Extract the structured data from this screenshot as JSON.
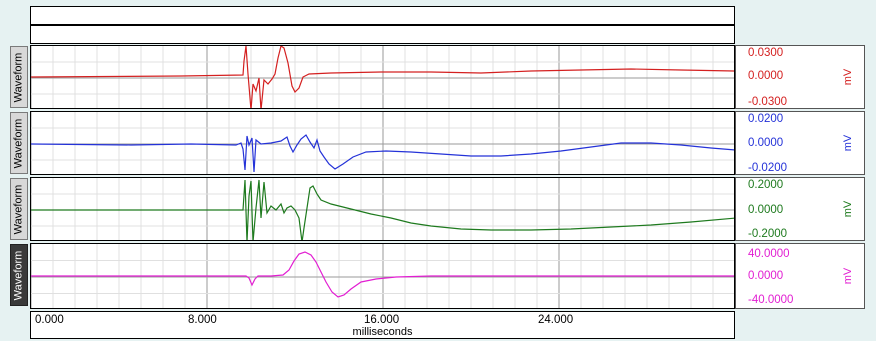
{
  "channels": [
    {
      "label": "Waveform",
      "color": "#d42020",
      "selected": false,
      "scale": {
        "top": "0.0300",
        "mid": "0.0000",
        "bottom": "-0.0300",
        "unit": "mV"
      }
    },
    {
      "label": "Waveform",
      "color": "#2432d8",
      "selected": false,
      "scale": {
        "top": "0.0200",
        "mid": "0.0000",
        "bottom": "-0.0200",
        "unit": "mV"
      }
    },
    {
      "label": "Waveform",
      "color": "#1e7a1e",
      "selected": false,
      "scale": {
        "top": "0.2000",
        "mid": "0.0000",
        "bottom": "-0.2000",
        "unit": "mV"
      }
    },
    {
      "label": "Waveform",
      "color": "#e21ed2",
      "selected": true,
      "scale": {
        "top": "40.0000",
        "mid": "0.0000",
        "bottom": "-40.0000",
        "unit": "mV"
      }
    }
  ],
  "x_axis": {
    "ticks": [
      "0.000",
      "8.000",
      "16.000",
      "24.000"
    ],
    "label": "milliseconds"
  }
}
